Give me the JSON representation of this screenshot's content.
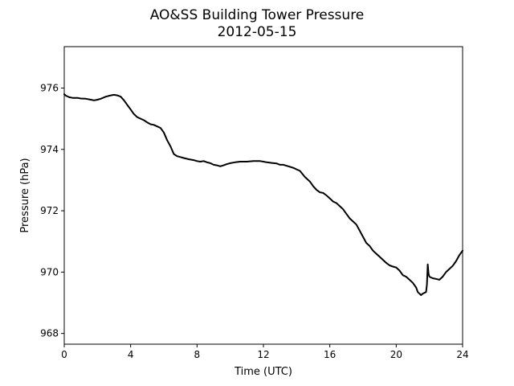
{
  "chart_data": {
    "type": "line",
    "title": "AO&SS Building Tower Pressure",
    "subtitle": "2012-05-15",
    "xlabel": "Time (UTC)",
    "ylabel": "Pressure (hPa)",
    "xlim": [
      0,
      24
    ],
    "ylim": [
      967.65,
      977.35
    ],
    "xticks": [
      0,
      4,
      8,
      12,
      16,
      20,
      24
    ],
    "yticks": [
      968,
      970,
      972,
      974,
      976
    ],
    "grid": false,
    "line_color": "#000000",
    "series": [
      {
        "x": [
          0,
          0.1,
          0.3,
          0.5,
          0.8,
          1.0,
          1.3,
          1.6,
          1.8,
          2.0,
          2.2,
          2.5,
          2.8,
          3.0,
          3.2,
          3.4,
          3.6,
          3.8,
          4.0,
          4.2,
          4.4,
          4.6,
          4.8,
          5.0,
          5.2,
          5.4,
          5.6,
          5.8,
          6.0,
          6.2,
          6.4,
          6.6,
          6.8,
          7.0,
          7.2,
          7.5,
          7.8,
          8.0,
          8.2,
          8.4,
          8.6,
          8.8,
          9.0,
          9.2,
          9.4,
          9.6,
          9.8,
          10.0,
          10.3,
          10.6,
          11.0,
          11.4,
          11.8,
          12.0,
          12.2,
          12.5,
          12.8,
          13.0,
          13.2,
          13.5,
          13.8,
          14.0,
          14.2,
          14.5,
          14.8,
          15.0,
          15.2,
          15.4,
          15.6,
          15.8,
          16.0,
          16.2,
          16.4,
          16.6,
          16.8,
          17.0,
          17.2,
          17.4,
          17.6,
          17.8,
          18.0,
          18.2,
          18.4,
          18.6,
          18.8,
          19.0,
          19.2,
          19.4,
          19.6,
          19.8,
          20.0,
          20.2,
          20.4,
          20.6,
          20.8,
          21.0,
          21.2,
          21.3,
          21.5,
          21.6,
          21.8,
          21.85,
          21.9,
          21.95,
          22.0,
          22.2,
          22.4,
          22.6,
          22.8,
          23.0,
          23.2,
          23.4,
          23.6,
          23.8,
          24.0
        ],
        "values": [
          975.8,
          975.75,
          975.7,
          975.68,
          975.68,
          975.66,
          975.65,
          975.62,
          975.6,
          975.62,
          975.65,
          975.72,
          975.76,
          975.78,
          975.76,
          975.72,
          975.6,
          975.45,
          975.3,
          975.15,
          975.05,
          975.0,
          974.95,
          974.88,
          974.82,
          974.8,
          974.75,
          974.7,
          974.55,
          974.3,
          974.1,
          973.85,
          973.78,
          973.75,
          973.72,
          973.68,
          973.65,
          973.62,
          973.6,
          973.62,
          973.58,
          973.55,
          973.5,
          973.48,
          973.45,
          973.48,
          973.52,
          973.55,
          973.58,
          973.6,
          973.6,
          973.62,
          973.62,
          973.6,
          973.58,
          973.56,
          973.54,
          973.5,
          973.5,
          973.45,
          973.4,
          973.35,
          973.3,
          973.1,
          972.95,
          972.8,
          972.68,
          972.6,
          972.58,
          972.5,
          972.4,
          972.3,
          972.25,
          972.15,
          972.05,
          971.9,
          971.75,
          971.65,
          971.55,
          971.35,
          971.15,
          970.95,
          970.85,
          970.7,
          970.6,
          970.5,
          970.4,
          970.3,
          970.22,
          970.18,
          970.15,
          970.05,
          969.9,
          969.85,
          969.75,
          969.65,
          969.5,
          969.35,
          969.25,
          969.3,
          969.35,
          969.6,
          970.25,
          969.95,
          969.85,
          969.8,
          969.78,
          969.75,
          969.85,
          970.0,
          970.1,
          970.2,
          970.35,
          970.55,
          970.7
        ]
      }
    ]
  }
}
